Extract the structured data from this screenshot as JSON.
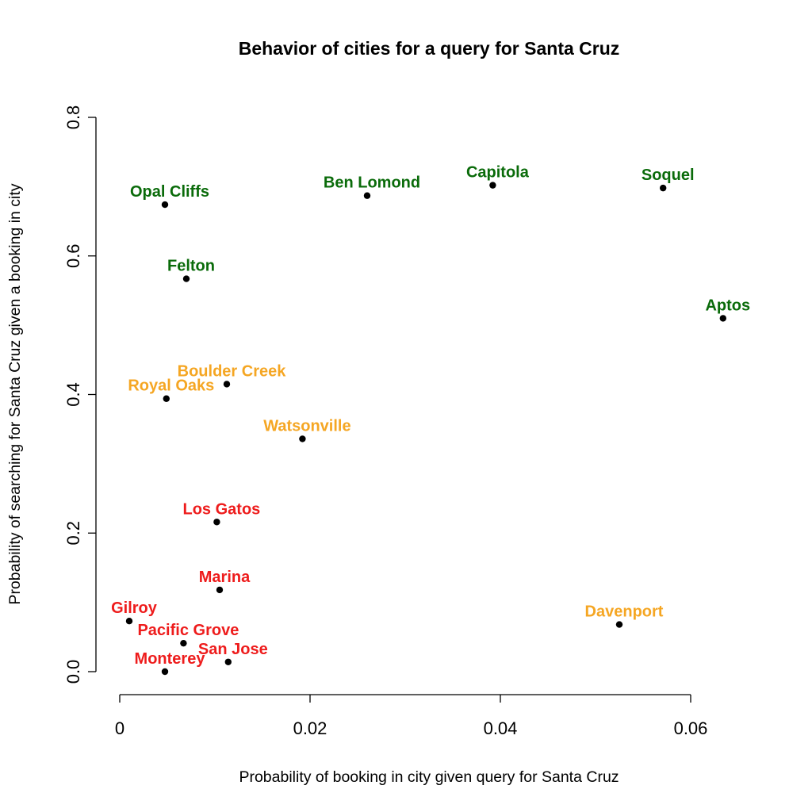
{
  "chart_data": {
    "type": "scatter",
    "title": "Behavior of cities for a query for Santa Cruz",
    "xlabel": "Probability of booking in city given query for Santa Cruz",
    "ylabel": "Probability of searching for Santa Cruz given a booking in city",
    "xlim": [
      0,
      0.06
    ],
    "ylim": [
      0,
      0.8
    ],
    "xticks": [
      0,
      0.02,
      0.04,
      0.06
    ],
    "xtick_labels": [
      "0",
      "0.02",
      "0.04",
      "0.06"
    ],
    "yticks": [
      0,
      0.2,
      0.4,
      0.6,
      0.8
    ],
    "ytick_labels": [
      "0.0",
      "0.2",
      "0.4",
      "0.6",
      "0.8"
    ],
    "grid": false,
    "colors": {
      "green": "#0a6b0a",
      "orange": "#f5a623",
      "red": "#ee1c1c"
    },
    "points": [
      {
        "label": "Opal Cliffs",
        "x": 0.00475,
        "y": 0.674,
        "color": "green"
      },
      {
        "label": "Ben Lomond",
        "x": 0.026,
        "y": 0.687,
        "color": "green"
      },
      {
        "label": "Capitola",
        "x": 0.0392,
        "y": 0.702,
        "color": "green"
      },
      {
        "label": "Soquel",
        "x": 0.0571,
        "y": 0.698,
        "color": "green"
      },
      {
        "label": "Felton",
        "x": 0.007,
        "y": 0.567,
        "color": "green"
      },
      {
        "label": "Aptos",
        "x": 0.0634,
        "y": 0.51,
        "color": "green"
      },
      {
        "label": "Boulder Creek",
        "x": 0.01125,
        "y": 0.415,
        "color": "orange"
      },
      {
        "label": "Royal Oaks",
        "x": 0.0049,
        "y": 0.394,
        "color": "orange"
      },
      {
        "label": "Watsonville",
        "x": 0.0192,
        "y": 0.336,
        "color": "orange"
      },
      {
        "label": "Davenport",
        "x": 0.0525,
        "y": 0.068,
        "color": "orange"
      },
      {
        "label": "Los Gatos",
        "x": 0.0102,
        "y": 0.216,
        "color": "red"
      },
      {
        "label": "Marina",
        "x": 0.0105,
        "y": 0.118,
        "color": "red"
      },
      {
        "label": "Gilroy",
        "x": 0.001,
        "y": 0.073,
        "color": "red"
      },
      {
        "label": "Pacific Grove",
        "x": 0.0067,
        "y": 0.041,
        "color": "red"
      },
      {
        "label": "San Jose",
        "x": 0.0114,
        "y": 0.014,
        "color": "red"
      },
      {
        "label": "Monterey",
        "x": 0.00475,
        "y": 0.0,
        "color": "red"
      }
    ]
  }
}
